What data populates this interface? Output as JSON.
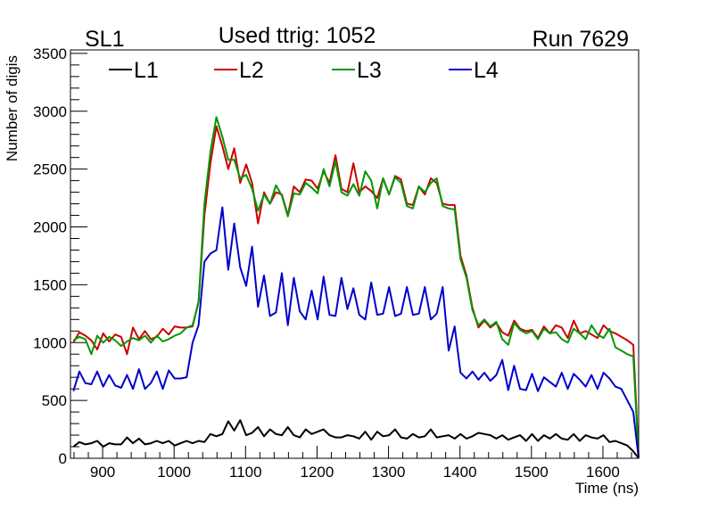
{
  "chart_data": {
    "type": "line",
    "title_left": "SL1",
    "title_center": "Used ttrig: 1052",
    "title_right": "Run 7629",
    "xlabel": "Time (ns)",
    "ylabel": "Number of digis",
    "xlim": [
      855,
      1650
    ],
    "ylim": [
      0,
      3530
    ],
    "x_ticks": [
      900,
      1000,
      1100,
      1200,
      1300,
      1400,
      1500,
      1600
    ],
    "y_ticks": [
      0,
      500,
      1000,
      1500,
      2000,
      2500,
      3000,
      3500
    ],
    "x_start": 859.17,
    "bin_width": 8.333,
    "legend_placement": "top",
    "grid": false,
    "series": [
      {
        "name": "L1",
        "color": "#000000",
        "values": [
          100,
          140,
          120,
          130,
          150,
          100,
          130,
          120,
          120,
          180,
          130,
          170,
          120,
          130,
          150,
          130,
          150,
          110,
          130,
          150,
          130,
          150,
          140,
          210,
          190,
          210,
          320,
          240,
          330,
          200,
          220,
          270,
          190,
          250,
          210,
          200,
          270,
          200,
          180,
          250,
          210,
          230,
          250,
          200,
          180,
          180,
          200,
          190,
          170,
          230,
          160,
          230,
          190,
          200,
          250,
          180,
          170,
          210,
          180,
          190,
          250,
          180,
          190,
          200,
          170,
          210,
          170,
          190,
          220,
          210,
          200,
          170,
          200,
          160,
          180,
          200,
          150,
          210,
          150,
          200,
          170,
          210,
          170,
          160,
          210,
          150,
          200,
          180,
          170,
          200,
          140,
          150,
          130,
          110,
          60,
          0
        ]
      },
      {
        "name": "L2",
        "color": "#cc0000",
        "values": [
          1000,
          1090,
          1060,
          1020,
          940,
          1080,
          1010,
          1070,
          1050,
          900,
          1130,
          1030,
          1100,
          1030,
          1050,
          1120,
          1070,
          1140,
          1130,
          1130,
          1140,
          1350,
          2100,
          2550,
          2870,
          2700,
          2500,
          2680,
          2380,
          2540,
          2380,
          2030,
          2300,
          2200,
          2300,
          2280,
          2100,
          2350,
          2300,
          2410,
          2400,
          2330,
          2480,
          2380,
          2620,
          2330,
          2300,
          2550,
          2300,
          2350,
          2310,
          2250,
          2420,
          2280,
          2440,
          2410,
          2200,
          2190,
          2350,
          2280,
          2420,
          2380,
          2200,
          2190,
          2190,
          1750,
          1580,
          1300,
          1130,
          1190,
          1130,
          1170,
          1090,
          1060,
          1190,
          1120,
          1100,
          1110,
          1040,
          1140,
          1080,
          1150,
          1130,
          1040,
          1190,
          1080,
          1100,
          1070,
          1040,
          1150,
          1100,
          1080,
          1050,
          1020,
          980,
          0
        ]
      },
      {
        "name": "L3",
        "color": "#009900",
        "values": [
          1020,
          1050,
          1030,
          900,
          1060,
          1000,
          1050,
          1020,
          970,
          1010,
          1040,
          1020,
          1060,
          1000,
          1060,
          1010,
          1030,
          1060,
          1080,
          1130,
          1150,
          1350,
          2200,
          2650,
          2950,
          2780,
          2580,
          2580,
          2420,
          2450,
          2330,
          2140,
          2280,
          2200,
          2360,
          2270,
          2090,
          2290,
          2280,
          2380,
          2340,
          2290,
          2500,
          2350,
          2570,
          2300,
          2270,
          2370,
          2270,
          2480,
          2400,
          2160,
          2420,
          2280,
          2430,
          2380,
          2180,
          2160,
          2350,
          2300,
          2380,
          2420,
          2180,
          2160,
          2150,
          1720,
          1560,
          1280,
          1150,
          1200,
          1140,
          1180,
          1030,
          980,
          1170,
          1110,
          1080,
          1100,
          1030,
          1120,
          1080,
          1090,
          1030,
          1000,
          1120,
          1080,
          1030,
          1150,
          1070,
          1040,
          1120,
          960,
          930,
          900,
          880,
          0
        ]
      },
      {
        "name": "L4",
        "color": "#0000cc",
        "values": [
          580,
          750,
          650,
          640,
          750,
          620,
          720,
          630,
          610,
          720,
          600,
          770,
          600,
          650,
          750,
          600,
          760,
          690,
          690,
          700,
          1000,
          1150,
          1700,
          1770,
          1800,
          2170,
          1630,
          2030,
          1650,
          1490,
          1830,
          1310,
          1580,
          1230,
          1260,
          1600,
          1150,
          1560,
          1270,
          1200,
          1450,
          1200,
          1570,
          1240,
          1230,
          1560,
          1290,
          1470,
          1240,
          1200,
          1520,
          1240,
          1250,
          1480,
          1230,
          1250,
          1480,
          1240,
          1250,
          1480,
          1200,
          1250,
          1480,
          930,
          1140,
          740,
          690,
          750,
          680,
          740,
          670,
          720,
          850,
          590,
          800,
          600,
          590,
          730,
          580,
          700,
          660,
          620,
          740,
          600,
          730,
          680,
          620,
          720,
          600,
          740,
          690,
          620,
          600,
          500,
          400,
          0
        ]
      }
    ]
  }
}
